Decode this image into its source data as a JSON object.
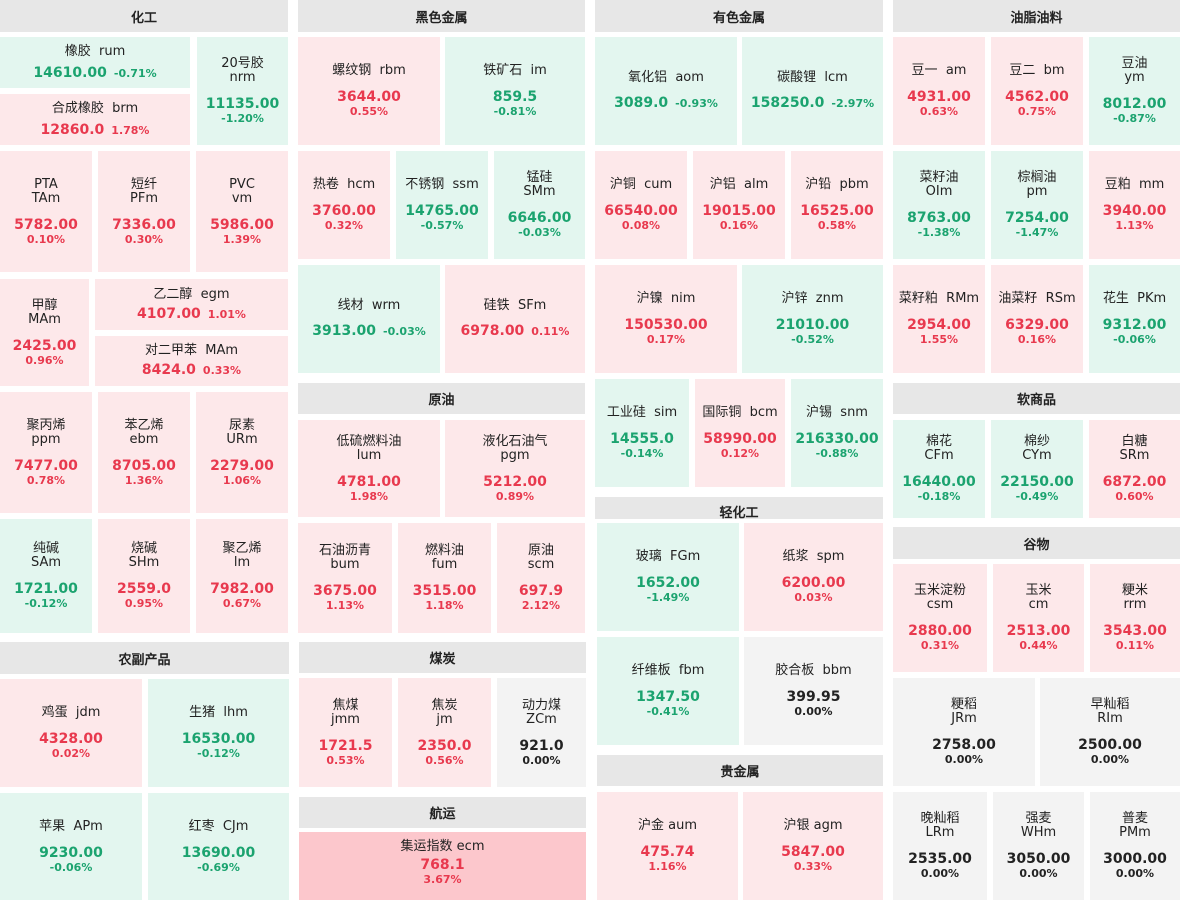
{
  "sections": {
    "chem": "化工",
    "black": "黑色金属",
    "nonfer": "有色金属",
    "oil": "油脂油料",
    "crude": "原油",
    "soft": "软商品",
    "light": "轻化工",
    "grain": "谷物",
    "agri": "农副产品",
    "coal": "煤炭",
    "ship": "航运",
    "precious": "贵金属"
  },
  "t": {
    "ru": {
      "name": "橡胶",
      "sym": "rum",
      "price": "14610.00",
      "pct": "-0.71%"
    },
    "nr": {
      "name": "20号胶",
      "sym": "nrm",
      "price": "11135.00",
      "pct": "-1.20%"
    },
    "br": {
      "name": "合成橡胶",
      "sym": "brm",
      "price": "12860.0",
      "pct": "1.78%"
    },
    "ta": {
      "name": "PTA",
      "sym": "TAm",
      "price": "5782.00",
      "pct": "0.10%"
    },
    "pf": {
      "name": "短纤",
      "sym": "PFm",
      "price": "7336.00",
      "pct": "0.30%"
    },
    "v": {
      "name": "PVC",
      "sym": "vm",
      "price": "5986.00",
      "pct": "1.39%"
    },
    "ma": {
      "name": "甲醇",
      "sym": "MAm",
      "price": "2425.00",
      "pct": "0.96%"
    },
    "eg": {
      "name": "乙二醇",
      "sym": "egm",
      "price": "4107.00",
      "pct": "1.01%"
    },
    "px": {
      "name": "对二甲苯",
      "sym": "MAm",
      "price": "8424.0",
      "pct": "0.33%"
    },
    "pp": {
      "name": "聚丙烯",
      "sym": "ppm",
      "price": "7477.00",
      "pct": "0.78%"
    },
    "eb": {
      "name": "苯乙烯",
      "sym": "ebm",
      "price": "8705.00",
      "pct": "1.36%"
    },
    "ur": {
      "name": "尿素",
      "sym": "URm",
      "price": "2279.00",
      "pct": "1.06%"
    },
    "sa": {
      "name": "纯碱",
      "sym": "SAm",
      "price": "1721.00",
      "pct": "-0.12%"
    },
    "sh": {
      "name": "烧碱",
      "sym": "SHm",
      "price": "2559.0",
      "pct": "0.95%"
    },
    "l": {
      "name": "聚乙烯",
      "sym": "lm",
      "price": "7982.00",
      "pct": "0.67%"
    },
    "rb": {
      "name": "螺纹钢",
      "sym": "rbm",
      "price": "3644.00",
      "pct": "0.55%"
    },
    "im": {
      "name": "铁矿石",
      "sym": "im",
      "price": "859.5",
      "pct": "-0.81%"
    },
    "hc": {
      "name": "热卷",
      "sym": "hcm",
      "price": "3760.00",
      "pct": "0.32%"
    },
    "ss": {
      "name": "不锈钢",
      "sym": "ssm",
      "price": "14765.00",
      "pct": "-0.57%"
    },
    "sm": {
      "name": "锰硅",
      "sym": "SMm",
      "price": "6646.00",
      "pct": "-0.03%"
    },
    "wr": {
      "name": "线材",
      "sym": "wrm",
      "price": "3913.00",
      "pct": "-0.03%"
    },
    "sf": {
      "name": "硅铁",
      "sym": "SFm",
      "price": "6978.00",
      "pct": "0.11%"
    },
    "lu": {
      "name": "低硫燃料油",
      "sym": "lum",
      "price": "4781.00",
      "pct": "1.98%"
    },
    "pg": {
      "name": "液化石油气",
      "sym": "pgm",
      "price": "5212.00",
      "pct": "0.89%"
    },
    "bu": {
      "name": "石油沥青",
      "sym": "bum",
      "price": "3675.00",
      "pct": "1.13%"
    },
    "fu": {
      "name": "燃料油",
      "sym": "fum",
      "price": "3515.00",
      "pct": "1.18%"
    },
    "sc": {
      "name": "原油",
      "sym": "scm",
      "price": "697.9",
      "pct": "2.12%"
    },
    "jd": {
      "name": "鸡蛋",
      "sym": "jdm",
      "price": "4328.00",
      "pct": "0.02%"
    },
    "lh": {
      "name": "生猪",
      "sym": "lhm",
      "price": "16530.00",
      "pct": "-0.12%"
    },
    "ap": {
      "name": "苹果",
      "sym": "APm",
      "price": "9230.00",
      "pct": "-0.06%"
    },
    "cj": {
      "name": "红枣",
      "sym": "CJm",
      "price": "13690.00",
      "pct": "-0.69%"
    },
    "jm": {
      "name": "焦煤",
      "sym": "jmm",
      "price": "1721.5",
      "pct": "0.53%"
    },
    "j": {
      "name": "焦炭",
      "sym": "jm",
      "price": "2350.0",
      "pct": "0.56%"
    },
    "zc": {
      "name": "动力煤",
      "sym": "ZCm",
      "price": "921.0",
      "pct": "0.00%"
    },
    "ec": {
      "name": "集运指数",
      "sym": "ecm",
      "price": "768.1",
      "pct": "3.67%"
    },
    "ao": {
      "name": "氧化铝",
      "sym": "aom",
      "price": "3089.0",
      "pct": "-0.93%"
    },
    "lc": {
      "name": "碳酸锂",
      "sym": "lcm",
      "price": "158250.0",
      "pct": "-2.97%"
    },
    "cu": {
      "name": "沪铜",
      "sym": "cum",
      "price": "66540.00",
      "pct": "0.08%"
    },
    "al": {
      "name": "沪铝",
      "sym": "alm",
      "price": "19015.00",
      "pct": "0.16%"
    },
    "pb": {
      "name": "沪铅",
      "sym": "pbm",
      "price": "16525.00",
      "pct": "0.58%"
    },
    "ni": {
      "name": "沪镍",
      "sym": "nim",
      "price": "150530.00",
      "pct": "0.17%"
    },
    "zn": {
      "name": "沪锌",
      "sym": "znm",
      "price": "21010.00",
      "pct": "-0.52%"
    },
    "si": {
      "name": "工业硅",
      "sym": "sim",
      "price": "14555.0",
      "pct": "-0.14%"
    },
    "bc": {
      "name": "国际铜",
      "sym": "bcm",
      "price": "58990.00",
      "pct": "0.12%"
    },
    "sn": {
      "name": "沪锡",
      "sym": "snm",
      "price": "216330.00",
      "pct": "-0.88%"
    },
    "fg": {
      "name": "玻璃",
      "sym": "FGm",
      "price": "1652.00",
      "pct": "-1.49%"
    },
    "sp": {
      "name": "纸浆",
      "sym": "spm",
      "price": "6200.00",
      "pct": "0.03%"
    },
    "fb": {
      "name": "纤维板",
      "sym": "fbm",
      "price": "1347.50",
      "pct": "-0.41%"
    },
    "bb": {
      "name": "胶合板",
      "sym": "bbm",
      "price": "399.95",
      "pct": "0.00%"
    },
    "au": {
      "name": "沪金",
      "sym": "aum",
      "price": "475.74",
      "pct": "1.16%"
    },
    "ag": {
      "name": "沪银",
      "sym": "agm",
      "price": "5847.00",
      "pct": "0.33%"
    },
    "a": {
      "name": "豆一",
      "sym": "am",
      "price": "4931.00",
      "pct": "0.63%"
    },
    "b": {
      "name": "豆二",
      "sym": "bm",
      "price": "4562.00",
      "pct": "0.75%"
    },
    "y": {
      "name": "豆油",
      "sym": "ym",
      "price": "8012.00",
      "pct": "-0.87%"
    },
    "oi": {
      "name": "菜籽油",
      "sym": "OIm",
      "price": "8763.00",
      "pct": "-1.38%"
    },
    "p": {
      "name": "棕榈油",
      "sym": "pm",
      "price": "7254.00",
      "pct": "-1.47%"
    },
    "m": {
      "name": "豆粕",
      "sym": "mm",
      "price": "3940.00",
      "pct": "1.13%"
    },
    "rm": {
      "name": "菜籽粕",
      "sym": "RMm",
      "price": "2954.00",
      "pct": "1.55%"
    },
    "rs": {
      "name": "油菜籽",
      "sym": "RSm",
      "price": "6329.00",
      "pct": "0.16%"
    },
    "pk": {
      "name": "花生",
      "sym": "PKm",
      "price": "9312.00",
      "pct": "-0.06%"
    },
    "cf": {
      "name": "棉花",
      "sym": "CFm",
      "price": "16440.00",
      "pct": "-0.18%"
    },
    "cy": {
      "name": "棉纱",
      "sym": "CYm",
      "price": "22150.00",
      "pct": "-0.49%"
    },
    "sr": {
      "name": "白糖",
      "sym": "SRm",
      "price": "6872.00",
      "pct": "0.60%"
    },
    "cs": {
      "name": "玉米淀粉",
      "sym": "csm",
      "price": "2880.00",
      "pct": "0.31%"
    },
    "c": {
      "name": "玉米",
      "sym": "cm",
      "price": "2513.00",
      "pct": "0.44%"
    },
    "rr": {
      "name": "粳米",
      "sym": "rrm",
      "price": "3543.00",
      "pct": "0.11%"
    },
    "jr": {
      "name": "粳稻",
      "sym": "JRm",
      "price": "2758.00",
      "pct": "0.00%"
    },
    "ri": {
      "name": "早籼稻",
      "sym": "RIm",
      "price": "2500.00",
      "pct": "0.00%"
    },
    "lr": {
      "name": "晚籼稻",
      "sym": "LRm",
      "price": "2535.00",
      "pct": "0.00%"
    },
    "wh": {
      "name": "强麦",
      "sym": "WHm",
      "price": "3050.00",
      "pct": "0.00%"
    },
    "pm": {
      "name": "普麦",
      "sym": "PMm",
      "price": "3000.00",
      "pct": "0.00%"
    }
  },
  "colors": {
    "up_bg": "#fde8ea",
    "down_bg": "#e3f6ef",
    "flat_bg": "#f3f3f3",
    "hot_bg": "#fcc7cc",
    "up": "#e8394e",
    "down": "#1ba36f",
    "header_bg": "#e7e7e7"
  }
}
